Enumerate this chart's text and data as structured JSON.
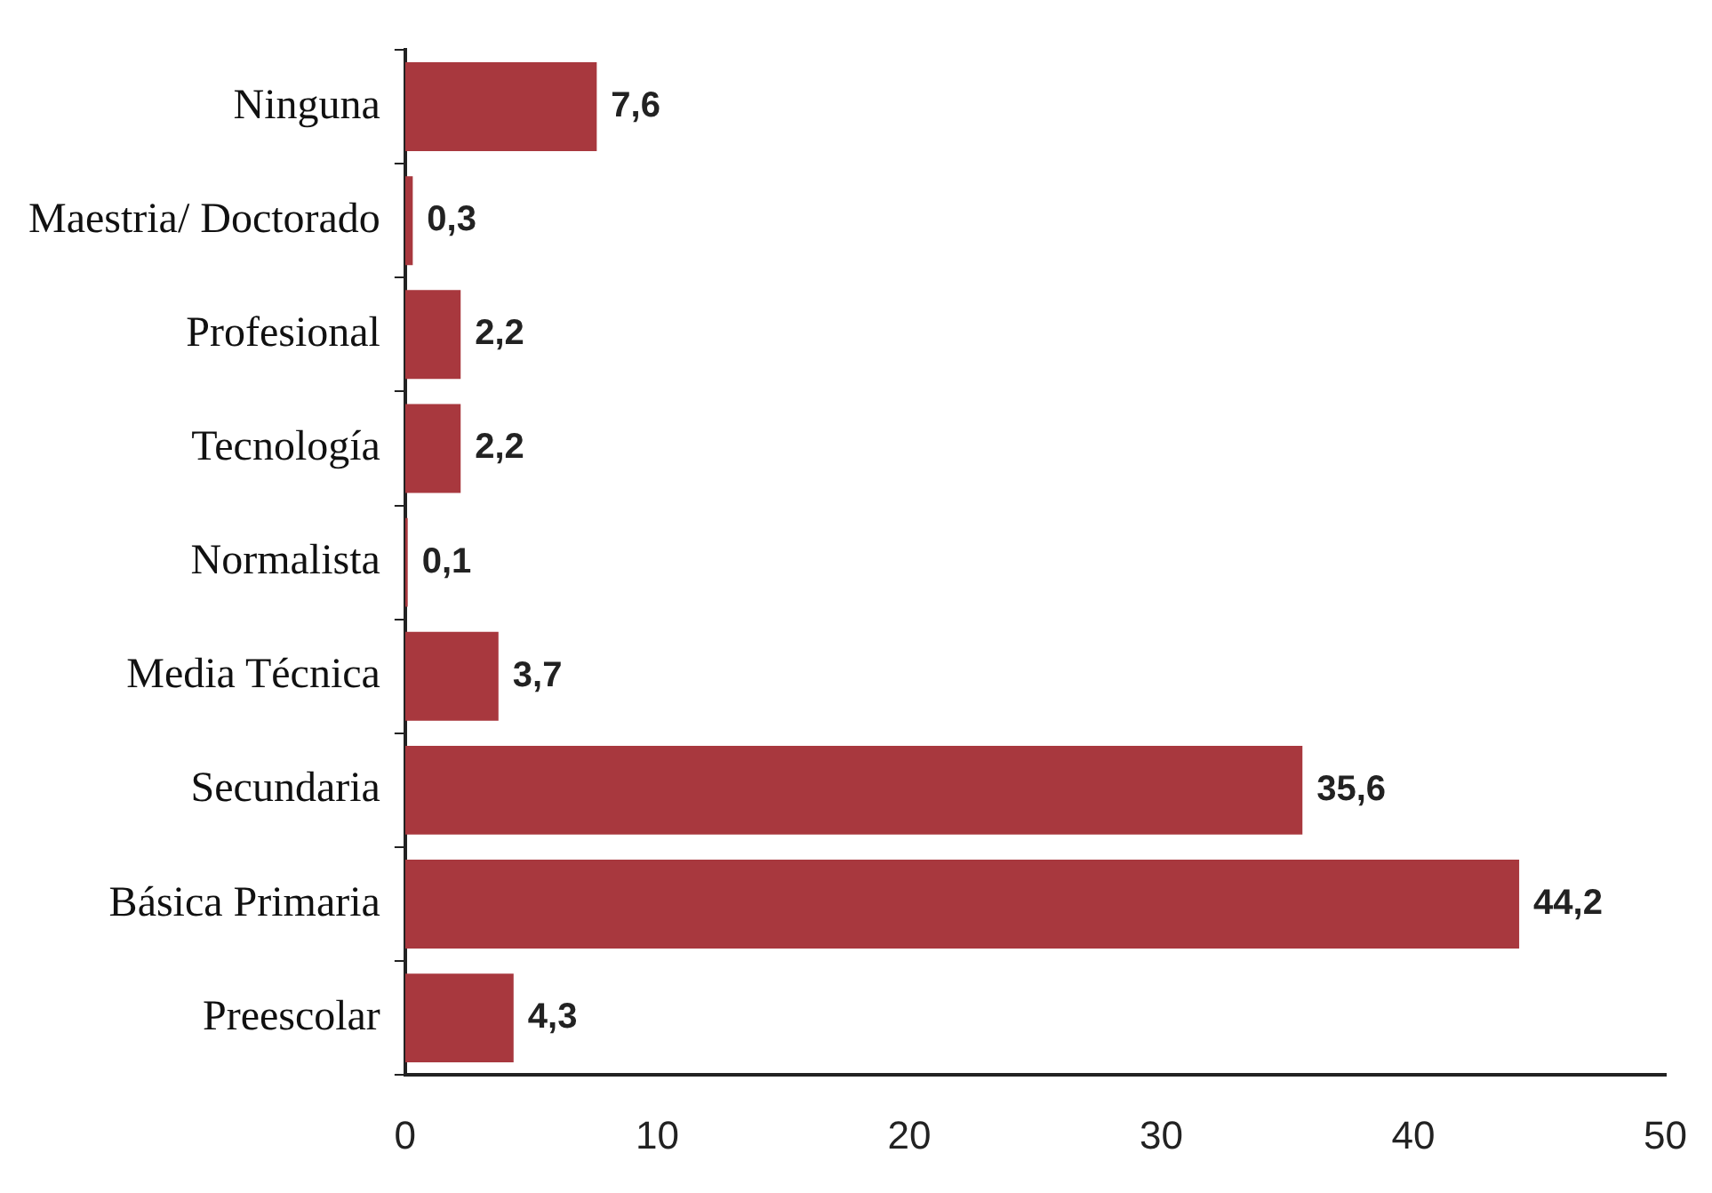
{
  "chart_data": {
    "type": "bar",
    "orientation": "horizontal",
    "categories": [
      "Ninguna",
      "Maestria/ Doctorado",
      "Profesional",
      "Tecnología",
      "Normalista",
      "Media Técnica",
      "Secundaria",
      "Básica Primaria",
      "Preescolar"
    ],
    "values": [
      7.6,
      0.3,
      2.2,
      2.2,
      0.1,
      3.7,
      35.6,
      44.2,
      4.3
    ],
    "value_labels": [
      "7,6",
      "0,3",
      "2,2",
      "2,2",
      "0,1",
      "3,7",
      "35,6",
      "44,2",
      "4,3"
    ],
    "color": "#a8383e",
    "xlim": [
      0,
      50
    ],
    "xticks": [
      0,
      10,
      20,
      30,
      40,
      50
    ],
    "grid": false,
    "legend": false
  }
}
